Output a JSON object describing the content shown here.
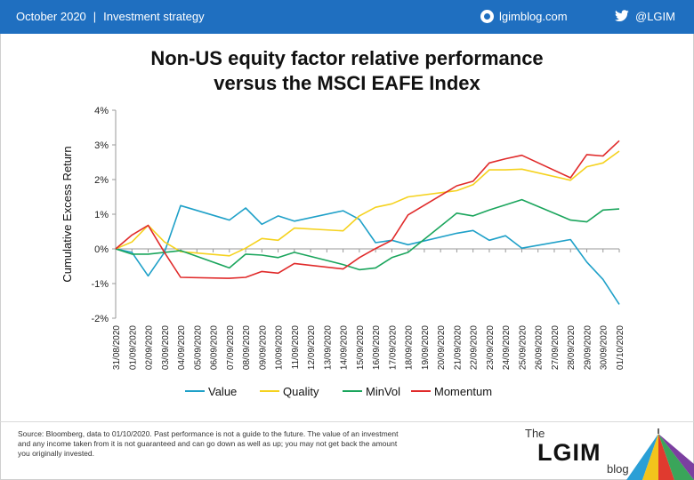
{
  "header": {
    "date": "October 2020",
    "separator": "|",
    "section": "Investment strategy",
    "blog": "lgimblog.com",
    "twitter": "@LGIM",
    "bar_color": "#1f6fc0"
  },
  "chart_title": {
    "line1": "Non-US  equity factor relative performance",
    "line2": "versus the MSCI EAFE Index"
  },
  "chart_data": {
    "type": "line",
    "ylabel": "Cumulative  Excess Return",
    "ylim": [
      -0.02,
      0.04
    ],
    "yticks": [
      "-2%",
      "-1%",
      "0%",
      "1%",
      "2%",
      "3%",
      "4%"
    ],
    "grid": false,
    "legend_position": "bottom",
    "categories": [
      "31/08/2020",
      "01/09/2020",
      "02/09/2020",
      "03/09/2020",
      "04/09/2020",
      "05/09/2020",
      "06/09/2020",
      "07/09/2020",
      "08/09/2020",
      "09/09/2020",
      "10/09/2020",
      "11/09/2020",
      "12/09/2020",
      "13/09/2020",
      "14/09/2020",
      "15/09/2020",
      "16/09/2020",
      "17/09/2020",
      "18/09/2020",
      "19/09/2020",
      "20/09/2020",
      "21/09/2020",
      "22/09/2020",
      "23/09/2020",
      "24/09/2020",
      "25/09/2020",
      "26/09/2020",
      "27/09/2020",
      "28/09/2020",
      "29/09/2020",
      "30/09/2020",
      "01/10/2020"
    ],
    "series": [
      {
        "name": "Value",
        "color": "#1ea0c8",
        "points": [
          [
            "31/08/2020",
            0.0
          ],
          [
            "01/09/2020",
            -0.001
          ],
          [
            "02/09/2020",
            -0.0078
          ],
          [
            "03/09/2020",
            -0.001
          ],
          [
            "04/09/2020",
            0.0125
          ],
          [
            "07/09/2020",
            0.0083
          ],
          [
            "08/09/2020",
            0.0118
          ],
          [
            "09/09/2020",
            0.0071
          ],
          [
            "10/09/2020",
            0.0095
          ],
          [
            "11/09/2020",
            0.008
          ],
          [
            "14/09/2020",
            0.011
          ],
          [
            "15/09/2020",
            0.0085
          ],
          [
            "16/09/2020",
            0.0018
          ],
          [
            "17/09/2020",
            0.0025
          ],
          [
            "18/09/2020",
            0.0012
          ],
          [
            "21/09/2020",
            0.0045
          ],
          [
            "22/09/2020",
            0.0053
          ],
          [
            "23/09/2020",
            0.0025
          ],
          [
            "24/09/2020",
            0.0038
          ],
          [
            "25/09/2020",
            0.0002
          ],
          [
            "28/09/2020",
            0.0027
          ],
          [
            "29/09/2020",
            -0.0038
          ],
          [
            "30/09/2020",
            -0.0088
          ],
          [
            "01/10/2020",
            -0.016
          ]
        ]
      },
      {
        "name": "Quality",
        "color": "#f5d21e",
        "points": [
          [
            "31/08/2020",
            0.0
          ],
          [
            "01/09/2020",
            0.002
          ],
          [
            "02/09/2020",
            0.0068
          ],
          [
            "03/09/2020",
            0.002
          ],
          [
            "04/09/2020",
            -0.0008
          ],
          [
            "07/09/2020",
            -0.002
          ],
          [
            "08/09/2020",
            0.0002
          ],
          [
            "09/09/2020",
            0.003
          ],
          [
            "10/09/2020",
            0.0025
          ],
          [
            "11/09/2020",
            0.006
          ],
          [
            "14/09/2020",
            0.0052
          ],
          [
            "15/09/2020",
            0.0095
          ],
          [
            "16/09/2020",
            0.012
          ],
          [
            "17/09/2020",
            0.013
          ],
          [
            "18/09/2020",
            0.015
          ],
          [
            "21/09/2020",
            0.0168
          ],
          [
            "22/09/2020",
            0.0185
          ],
          [
            "23/09/2020",
            0.0228
          ],
          [
            "24/09/2020",
            0.0228
          ],
          [
            "25/09/2020",
            0.023
          ],
          [
            "28/09/2020",
            0.0198
          ],
          [
            "29/09/2020",
            0.0237
          ],
          [
            "30/09/2020",
            0.0248
          ],
          [
            "01/10/2020",
            0.0282
          ]
        ]
      },
      {
        "name": "MinVol",
        "color": "#1aa55c",
        "points": [
          [
            "31/08/2020",
            0.0
          ],
          [
            "01/09/2020",
            -0.0015
          ],
          [
            "02/09/2020",
            -0.0015
          ],
          [
            "03/09/2020",
            -0.001
          ],
          [
            "04/09/2020",
            -0.0005
          ],
          [
            "07/09/2020",
            -0.0055
          ],
          [
            "08/09/2020",
            -0.0015
          ],
          [
            "09/09/2020",
            -0.0018
          ],
          [
            "10/09/2020",
            -0.0025
          ],
          [
            "11/09/2020",
            -0.001
          ],
          [
            "14/09/2020",
            -0.0045
          ],
          [
            "15/09/2020",
            -0.006
          ],
          [
            "16/09/2020",
            -0.0055
          ],
          [
            "17/09/2020",
            -0.0025
          ],
          [
            "18/09/2020",
            -0.001
          ],
          [
            "21/09/2020",
            0.0103
          ],
          [
            "22/09/2020",
            0.0095
          ],
          [
            "23/09/2020",
            0.0112
          ],
          [
            "25/09/2020",
            0.0142
          ],
          [
            "28/09/2020",
            0.0083
          ],
          [
            "29/09/2020",
            0.0078
          ],
          [
            "30/09/2020",
            0.0112
          ],
          [
            "01/10/2020",
            0.0115
          ]
        ]
      },
      {
        "name": "Momentum",
        "color": "#e02a2a",
        "points": [
          [
            "31/08/2020",
            0.0
          ],
          [
            "01/09/2020",
            0.004
          ],
          [
            "02/09/2020",
            0.0068
          ],
          [
            "03/09/2020",
            -0.001
          ],
          [
            "04/09/2020",
            -0.0082
          ],
          [
            "07/09/2020",
            -0.0085
          ],
          [
            "08/09/2020",
            -0.0082
          ],
          [
            "09/09/2020",
            -0.0065
          ],
          [
            "10/09/2020",
            -0.007
          ],
          [
            "11/09/2020",
            -0.0042
          ],
          [
            "14/09/2020",
            -0.0058
          ],
          [
            "15/09/2020",
            -0.0025
          ],
          [
            "16/09/2020",
            0.0001
          ],
          [
            "17/09/2020",
            0.0025
          ],
          [
            "18/09/2020",
            0.0098
          ],
          [
            "21/09/2020",
            0.0182
          ],
          [
            "22/09/2020",
            0.0195
          ],
          [
            "23/09/2020",
            0.0248
          ],
          [
            "24/09/2020",
            0.026
          ],
          [
            "25/09/2020",
            0.027
          ],
          [
            "28/09/2020",
            0.0205
          ],
          [
            "29/09/2020",
            0.0272
          ],
          [
            "30/09/2020",
            0.0268
          ],
          [
            "01/10/2020",
            0.0312
          ]
        ]
      }
    ]
  },
  "footer": {
    "source": "Source: Bloomberg, data to 01/10/2020. Past performance is not a guide to the future. The value of an investment and any income taken from it is not guaranteed and can go down as well as up; you may not get back the amount you originally invested.",
    "logo_the": "The",
    "logo_main": "LGIM",
    "logo_blog": "blog"
  }
}
